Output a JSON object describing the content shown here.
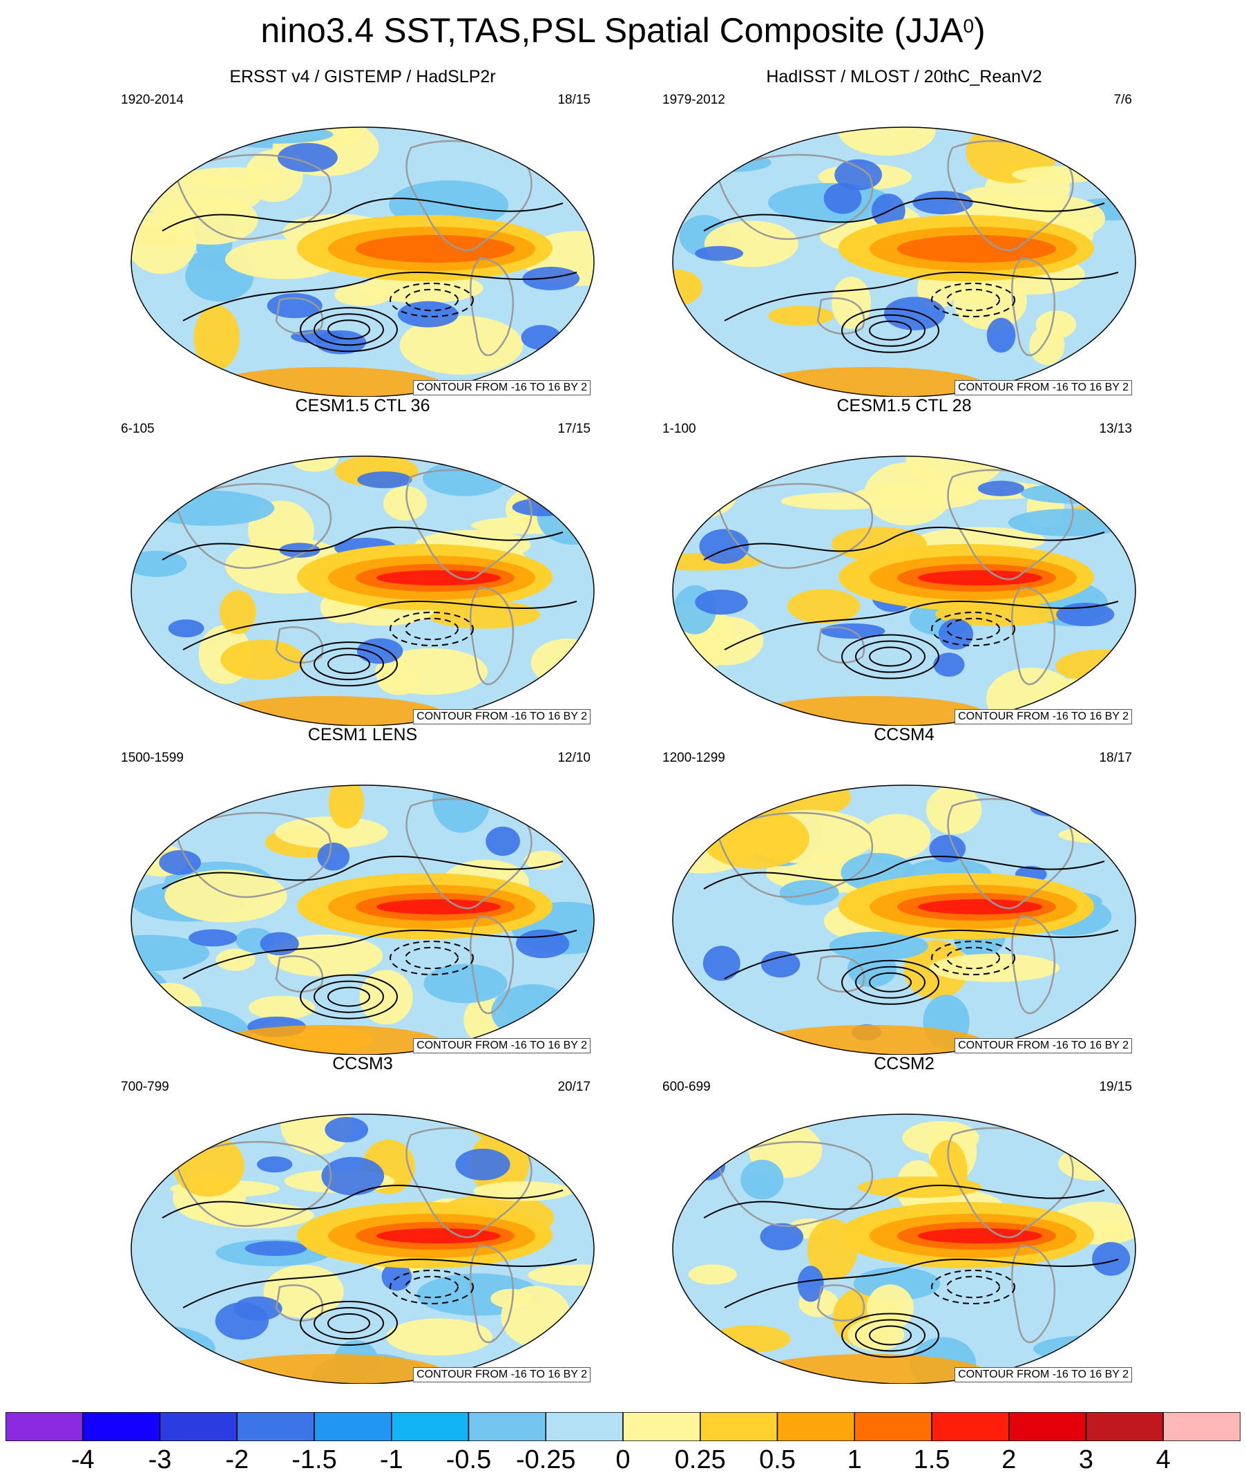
{
  "title": {
    "text": "nino3.4 SST,TAS,PSL Spatial Composite (JJA",
    "superscript": "0",
    "close": ")"
  },
  "chart_data": [
    {
      "type": "heatmap",
      "title": "ERSST v4 / GISTEMP / HadSLP2r",
      "period": "1920-2014",
      "counts": "18/15",
      "contour_info": "CONTOUR FROM -16 TO 16 BY 2"
    },
    {
      "type": "heatmap",
      "title": "HadISST / MLOST / 20thC_ReanV2",
      "period": "1979-2012",
      "counts": "7/6",
      "contour_info": "CONTOUR FROM -16 TO 16 BY 2"
    },
    {
      "type": "heatmap",
      "title": "CESM1.5 CTL 36",
      "period": "6-105",
      "counts": "17/15",
      "contour_info": "CONTOUR FROM -16 TO 16 BY 2"
    },
    {
      "type": "heatmap",
      "title": "CESM1.5 CTL 28",
      "period": "1-100",
      "counts": "13/13",
      "contour_info": "CONTOUR FROM -16 TO 16 BY 2"
    },
    {
      "type": "heatmap",
      "title": "CESM1 LENS",
      "period": "1500-1599",
      "counts": "12/10",
      "contour_info": "CONTOUR FROM -16 TO 16 BY 2"
    },
    {
      "type": "heatmap",
      "title": "CCSM4",
      "period": "1200-1299",
      "counts": "18/17",
      "contour_info": "CONTOUR FROM -16 TO 16 BY 2"
    },
    {
      "type": "heatmap",
      "title": "CCSM3",
      "period": "700-799",
      "counts": "20/17",
      "contour_info": "CONTOUR FROM -16 TO 16 BY 2"
    },
    {
      "type": "heatmap",
      "title": "CCSM2",
      "period": "600-699",
      "counts": "19/15",
      "contour_info": "CONTOUR FROM -16 TO 16 BY 2"
    }
  ],
  "colorbar": {
    "labels": [
      "-4",
      "-3",
      "-2",
      "-1.5",
      "-1",
      "-0.5",
      "-0.25",
      "0",
      "0.25",
      "0.5",
      "1",
      "1.5",
      "2",
      "3",
      "4"
    ],
    "colors": [
      "#8a2be2",
      "#1400ff",
      "#2b3de0",
      "#3d74e8",
      "#2196f3",
      "#12b4f5",
      "#74c6f0",
      "#b4e0f5",
      "#fff59a",
      "#ffd12e",
      "#ffa60a",
      "#ff6e00",
      "#ff1e0a",
      "#e3000b",
      "#c0181e",
      "#ffb8b8"
    ]
  }
}
